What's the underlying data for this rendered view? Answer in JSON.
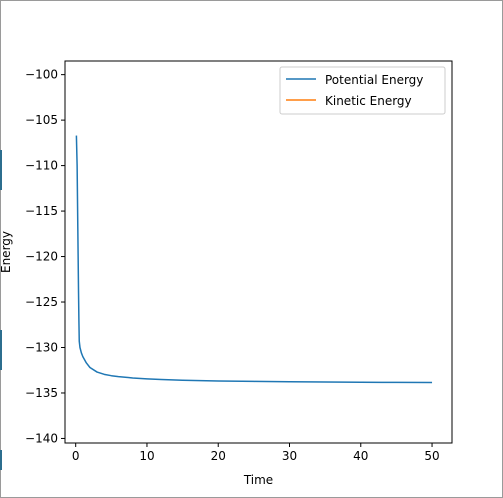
{
  "chart_data": {
    "type": "line",
    "title": "",
    "xlabel": "Time",
    "ylabel": "Energy",
    "xlim": [
      -1.5,
      52.8
    ],
    "ylim": [
      -140.5,
      -98.5
    ],
    "xticks": [
      0,
      10,
      20,
      30,
      40,
      50
    ],
    "yticks": [
      -100,
      -105,
      -110,
      -115,
      -120,
      -125,
      -130,
      -135,
      -140
    ],
    "grid": false,
    "legend": "top-right",
    "series": [
      {
        "name": "Potential Energy",
        "color": "#1f77b4",
        "x": [
          0.1,
          0.2,
          0.3,
          0.4,
          0.45,
          0.5,
          0.6,
          0.8,
          1.0,
          1.5,
          2.0,
          3.0,
          4.0,
          5.0,
          6.0,
          8.0,
          10.0,
          12.0,
          15.0,
          20.0,
          25.0,
          30.0,
          35.0,
          40.0,
          45.0,
          50.0
        ],
        "values": [
          -106.7,
          -110.0,
          -117.0,
          -124.0,
          -127.0,
          -129.3,
          -130.0,
          -130.6,
          -131.0,
          -131.7,
          -132.2,
          -132.7,
          -132.95,
          -133.1,
          -133.2,
          -133.35,
          -133.45,
          -133.52,
          -133.6,
          -133.68,
          -133.73,
          -133.77,
          -133.8,
          -133.82,
          -133.84,
          -133.85
        ]
      },
      {
        "name": "Kinetic Energy",
        "color": "#ff7f0e",
        "x": [],
        "values": []
      }
    ]
  }
}
